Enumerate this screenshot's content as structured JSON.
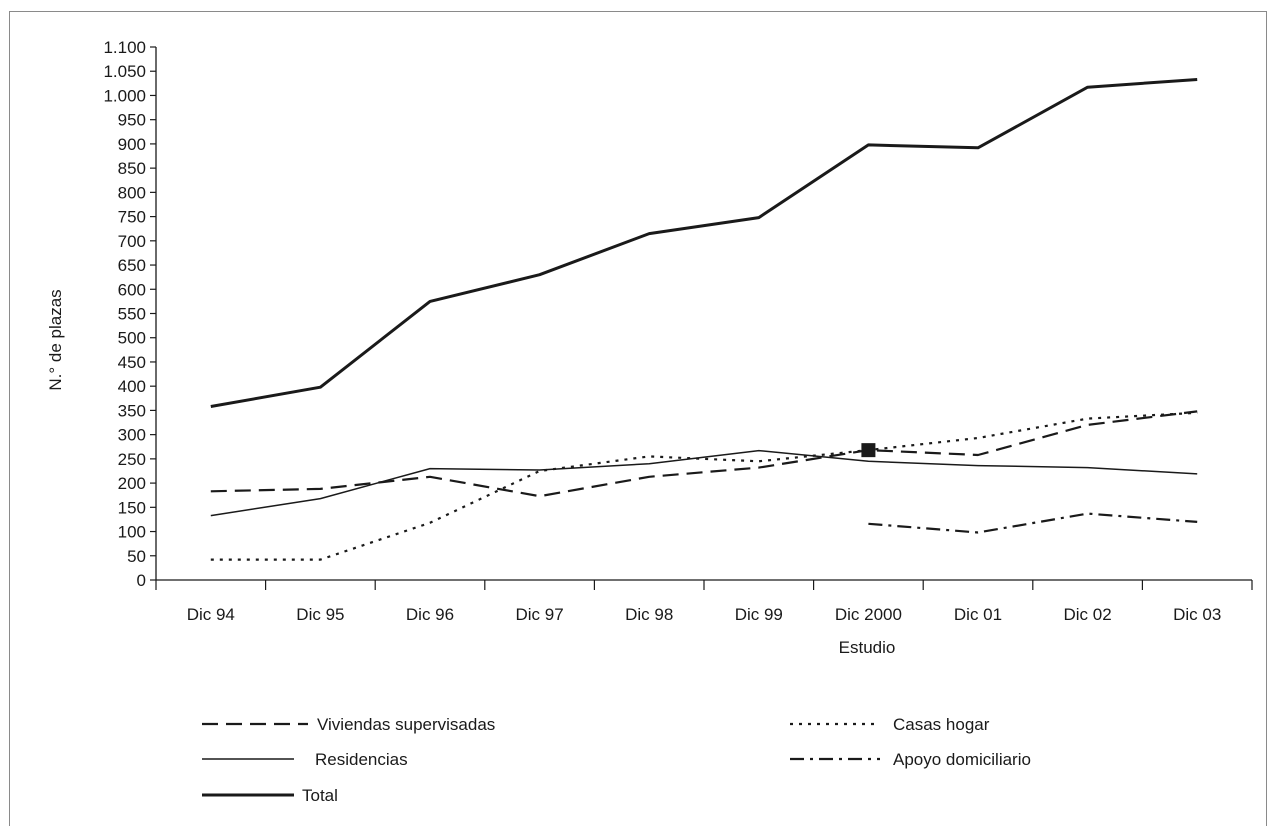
{
  "chart_data": {
    "type": "line",
    "title": "",
    "xlabel": "Estudio",
    "ylabel": "N.° de plazas",
    "categories": [
      "Dic 94",
      "Dic 95",
      "Dic 96",
      "Dic 97",
      "Dic 98",
      "Dic 99",
      "Dic 2000",
      "Dic 01",
      "Dic 02",
      "Dic 03"
    ],
    "ylim": [
      0,
      1100
    ],
    "yticks": [
      0,
      50,
      100,
      150,
      200,
      250,
      300,
      350,
      400,
      450,
      500,
      550,
      600,
      650,
      700,
      750,
      800,
      850,
      900,
      950,
      1000,
      1050,
      1100
    ],
    "ytick_labels": [
      "0",
      "50",
      "100",
      "150",
      "200",
      "250",
      "300",
      "350",
      "400",
      "450",
      "500",
      "550",
      "600",
      "650",
      "700",
      "750",
      "800",
      "850",
      "900",
      "950",
      "1.000",
      "1.050",
      "1.100"
    ],
    "grid": false,
    "legend_position": "bottom",
    "series": [
      {
        "name": "Viviendas supervisadas",
        "style": "dashed",
        "values": [
          183,
          188,
          213,
          173,
          213,
          232,
          268,
          258,
          320,
          348
        ]
      },
      {
        "name": "Casas hogar",
        "style": "dotted",
        "values": [
          42,
          42,
          118,
          225,
          255,
          245,
          268,
          293,
          333,
          345
        ]
      },
      {
        "name": "Residencias",
        "style": "thin-solid",
        "values": [
          133,
          168,
          230,
          227,
          240,
          267,
          245,
          236,
          232,
          219
        ]
      },
      {
        "name": "Apoyo domiciliario",
        "style": "dash-dot",
        "values": [
          null,
          null,
          null,
          null,
          null,
          null,
          116,
          98,
          137,
          120
        ]
      },
      {
        "name": "Total",
        "style": "thick-solid",
        "values": [
          358,
          398,
          575,
          630,
          715,
          748,
          898,
          892,
          1017,
          1033
        ]
      }
    ],
    "annotations": [
      {
        "type": "square-marker",
        "x": "Dic 2000",
        "y": 268,
        "color": "#1a1a1a"
      }
    ],
    "line_color": "#1a1a1a"
  }
}
